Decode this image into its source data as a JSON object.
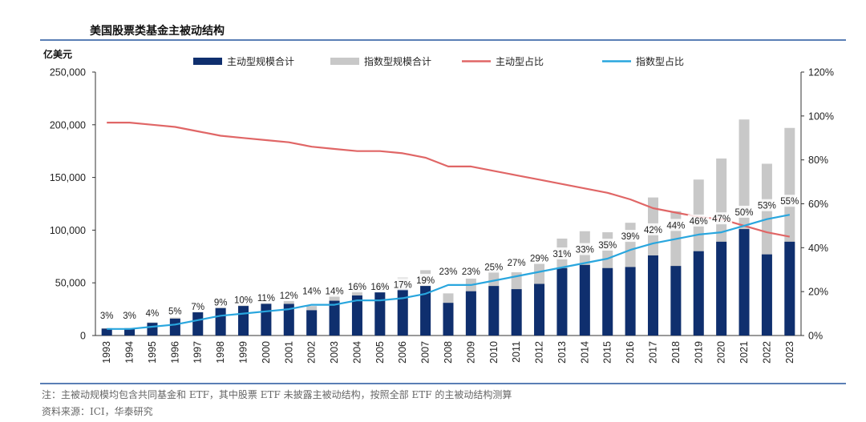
{
  "header": {
    "title": "美国股票类基金主被动结构"
  },
  "footer": {
    "note": "注：主被动规模均包含共同基金和 ETF，其中股票 ETF 未披露主被动结构，按照全部 ETF 的主被动结构测算",
    "source": "资料来源：ICI，华泰研究"
  },
  "chart_data": {
    "type": "bar",
    "y_left_unit": "亿美元",
    "categories": [
      "1993",
      "1994",
      "1995",
      "1996",
      "1997",
      "1998",
      "1999",
      "2000",
      "2001",
      "2002",
      "2003",
      "2004",
      "2005",
      "2006",
      "2007",
      "2008",
      "2009",
      "2010",
      "2011",
      "2012",
      "2013",
      "2014",
      "2015",
      "2016",
      "2017",
      "2018",
      "2019",
      "2020",
      "2021",
      "2022",
      "2023"
    ],
    "ylim_left": [
      0,
      250000
    ],
    "yticks_left": [
      "0",
      "50,000",
      "100,000",
      "150,000",
      "200,000",
      "250,000"
    ],
    "ylim_right": [
      0,
      120
    ],
    "yticks_right": [
      "0%",
      "20%",
      "40%",
      "60%",
      "80%",
      "100%",
      "120%"
    ],
    "series": [
      {
        "name": "主动型规模合计",
        "kind": "bar",
        "color": "#0f2f6e",
        "values": [
          6500,
          6800,
          12000,
          16000,
          22000,
          26000,
          28000,
          30000,
          30000,
          24000,
          33000,
          38000,
          41000,
          44000,
          47000,
          31000,
          42000,
          47000,
          44000,
          49000,
          64000,
          67000,
          64000,
          65000,
          76000,
          66000,
          80000,
          89000,
          101000,
          77000,
          89000
        ]
      },
      {
        "name": "指数型规模合计",
        "kind": "bar",
        "color": "#c8c8c8",
        "values": [
          7000,
          7200,
          12500,
          17000,
          23500,
          28000,
          30000,
          33000,
          33000,
          28000,
          38500,
          44000,
          48000,
          55000,
          62000,
          40000,
          54000,
          62000,
          60000,
          68000,
          92000,
          99000,
          98000,
          107000,
          131000,
          118000,
          148000,
          168000,
          205000,
          163000,
          197000
        ]
      },
      {
        "name": "主动型占比",
        "kind": "line",
        "color": "#e06666",
        "axis": "right",
        "values": [
          97,
          97,
          96,
          95,
          93,
          91,
          90,
          89,
          88,
          86,
          85,
          84,
          84,
          83,
          81,
          77,
          77,
          75,
          73,
          71,
          69,
          67,
          65,
          62,
          58,
          56,
          54,
          53,
          50,
          47,
          45
        ]
      },
      {
        "name": "指数型占比",
        "kind": "line",
        "color": "#29a6de",
        "axis": "right",
        "values": [
          3,
          3,
          4,
          5,
          7,
          9,
          10,
          11,
          12,
          14,
          14,
          16,
          16,
          17,
          19,
          23,
          23,
          25,
          27,
          29,
          31,
          33,
          35,
          39,
          42,
          44,
          46,
          47,
          50,
          53,
          55
        ]
      }
    ],
    "data_labels": [
      "3%",
      "3%",
      "4%",
      "5%",
      "7%",
      "9%",
      "10%",
      "11%",
      "12%",
      "14%",
      "14%",
      "16%",
      "16%",
      "17%",
      "19%",
      "23%",
      "23%",
      "25%",
      "27%",
      "29%",
      "31%",
      "33%",
      "35%",
      "39%",
      "42%",
      "44%",
      "46%",
      "47%",
      "50%",
      "53%",
      "55%"
    ],
    "legend_position": "top",
    "grid": false
  }
}
